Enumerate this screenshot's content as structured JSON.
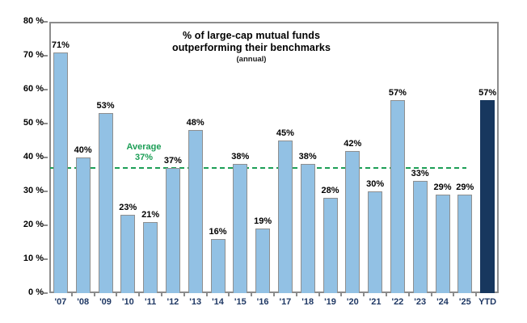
{
  "chart_data": {
    "type": "bar",
    "title": "% of large-cap mutual funds outperforming their benchmarks",
    "title_lines": [
      "% of large-cap mutual funds",
      "outperforming their benchmarks"
    ],
    "subtitle": "(annual)",
    "categories": [
      "'07",
      "'08",
      "'09",
      "'10",
      "'11",
      "'12",
      "'13",
      "'14",
      "'15",
      "'16",
      "'17",
      "'18",
      "'19",
      "'20",
      "'21",
      "'22",
      "'23",
      "'24",
      "'25",
      "YTD"
    ],
    "values": [
      71,
      40,
      53,
      23,
      21,
      37,
      48,
      16,
      38,
      19,
      45,
      38,
      28,
      42,
      30,
      57,
      33,
      29,
      29,
      57
    ],
    "value_labels": [
      "71%",
      "40%",
      "53%",
      "23%",
      "21%",
      "37%",
      "48%",
      "16%",
      "38%",
      "19%",
      "45%",
      "38%",
      "28%",
      "42%",
      "30%",
      "57%",
      "33%",
      "29%",
      "29%",
      "57%"
    ],
    "highlight_category": "YTD",
    "ylim": [
      0,
      80
    ],
    "y_tick_labels": [
      "80 %",
      "70 %",
      "60 %",
      "50 %",
      "40 %",
      "30 %",
      "20 %",
      "10 %",
      "0 %"
    ],
    "grid": false,
    "legend": "none",
    "average_line": {
      "value": 37,
      "label_line1": "Average",
      "label_line2": "37%"
    },
    "colors": {
      "bar_fill": "#92C1E4",
      "bar_border": "#8F8F8F",
      "highlight_fill": "#17375E",
      "highlight_border": "#17375E",
      "average_green": "#1C9E56",
      "value_label": "#000000",
      "x_label": "#1F3864",
      "y_label": "#000000",
      "axis": "#8C8C8C"
    }
  }
}
